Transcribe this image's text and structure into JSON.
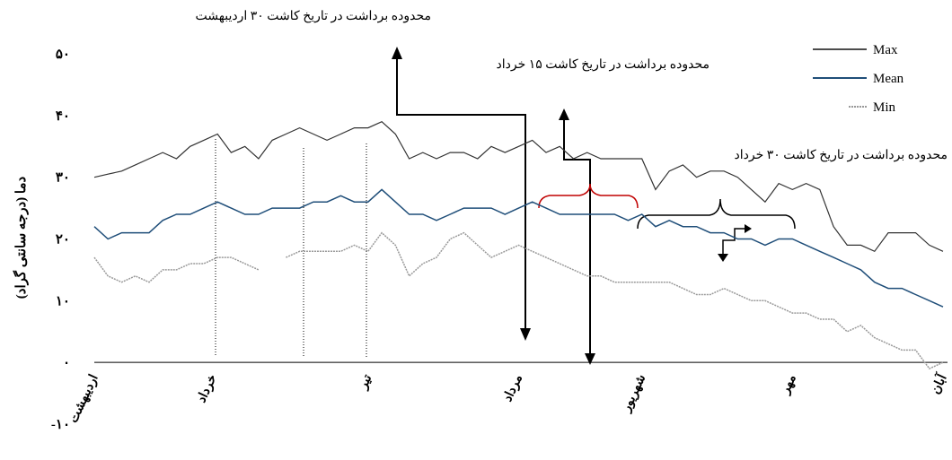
{
  "chart_data": {
    "type": "line",
    "y_label": "دما (درجه سانتی گراد)",
    "annotations": [
      "محدوده برداشت در تاریخ کاشت ۳۰ اردیبهشت",
      "محدوده برداشت در تاریخ کاشت ۱۵ خرداد",
      "محدوده برداشت در تاریخ کاشت ۳۰ خرداد"
    ],
    "x": [
      0,
      3,
      6,
      9,
      12,
      15,
      18,
      21,
      24,
      27,
      30,
      33,
      36,
      39,
      42,
      45,
      48,
      51,
      54,
      57,
      60,
      63,
      66,
      69,
      72,
      75,
      78,
      81,
      84,
      87,
      90,
      93,
      96,
      99,
      102,
      105,
      108,
      111,
      114,
      117,
      120,
      123,
      126,
      129,
      132,
      135,
      138,
      141,
      144,
      147,
      150,
      153,
      156,
      159,
      162,
      165,
      168,
      171,
      174,
      177,
      180,
      183,
      186
    ],
    "xlim": [
      0,
      186
    ],
    "xticks": [
      {
        "value": 0,
        "label": "اردیبهشت"
      },
      {
        "value": 26,
        "label": "خرداد"
      },
      {
        "value": 60,
        "label": "تیر"
      },
      {
        "value": 93,
        "label": "مرداد"
      },
      {
        "value": 120,
        "label": "شهریور"
      },
      {
        "value": 153,
        "label": "مهر"
      },
      {
        "value": 186,
        "label": "آبان"
      }
    ],
    "ylim": [
      -10,
      50
    ],
    "yticks": [
      {
        "value": -10,
        "label": "-۱۰"
      },
      {
        "value": 0,
        "label": "۰"
      },
      {
        "value": 10,
        "label": "۱۰"
      },
      {
        "value": 20,
        "label": "۲۰"
      },
      {
        "value": 30,
        "label": "۳۰"
      },
      {
        "value": 40,
        "label": "۴۰"
      },
      {
        "value": 50,
        "label": "۵۰"
      }
    ],
    "legend": "top-right",
    "series": [
      {
        "name": "Max",
        "color": "#333333",
        "values": [
          30,
          30.5,
          31,
          32,
          33,
          34,
          33,
          35,
          36,
          37,
          34,
          35,
          33,
          36,
          37,
          38,
          37,
          36,
          37,
          38,
          38,
          39,
          37,
          33,
          34,
          33,
          34,
          34,
          33,
          35,
          34,
          35,
          36,
          34,
          35,
          33,
          34,
          33,
          33,
          33,
          33,
          28,
          31,
          32,
          30,
          31,
          31,
          30,
          28,
          26,
          29,
          28,
          29,
          28,
          22,
          19,
          19,
          18,
          21,
          21,
          21,
          19,
          18
        ]
      },
      {
        "name": "Mean",
        "color": "#1f4e79",
        "values": [
          22,
          20,
          21,
          21,
          21,
          23,
          24,
          24,
          25,
          26,
          25,
          24,
          24,
          25,
          25,
          25,
          26,
          26,
          27,
          26,
          26,
          28,
          26,
          24,
          24,
          23,
          24,
          25,
          25,
          25,
          24,
          25,
          26,
          25,
          24,
          24,
          24,
          24,
          24,
          23,
          24,
          22,
          23,
          22,
          22,
          21,
          21,
          20,
          20,
          19,
          20,
          20,
          19,
          18,
          17,
          16,
          15,
          13,
          12,
          12,
          11,
          10,
          9
        ]
      },
      {
        "name": "Min",
        "color": "#999999",
        "values": [
          17,
          14,
          13,
          14,
          13,
          15,
          15,
          16,
          16,
          17,
          17,
          16,
          15,
          null,
          17,
          18,
          18,
          18,
          18,
          19,
          18,
          21,
          19,
          14,
          16,
          17,
          20,
          21,
          19,
          17,
          18,
          19,
          18,
          17,
          16,
          15,
          14,
          14,
          13,
          13,
          13,
          13,
          13,
          12,
          11,
          11,
          12,
          11,
          10,
          10,
          9,
          8,
          8,
          7,
          7,
          5,
          6,
          4,
          3,
          2,
          2,
          -1,
          0
        ]
      }
    ]
  }
}
